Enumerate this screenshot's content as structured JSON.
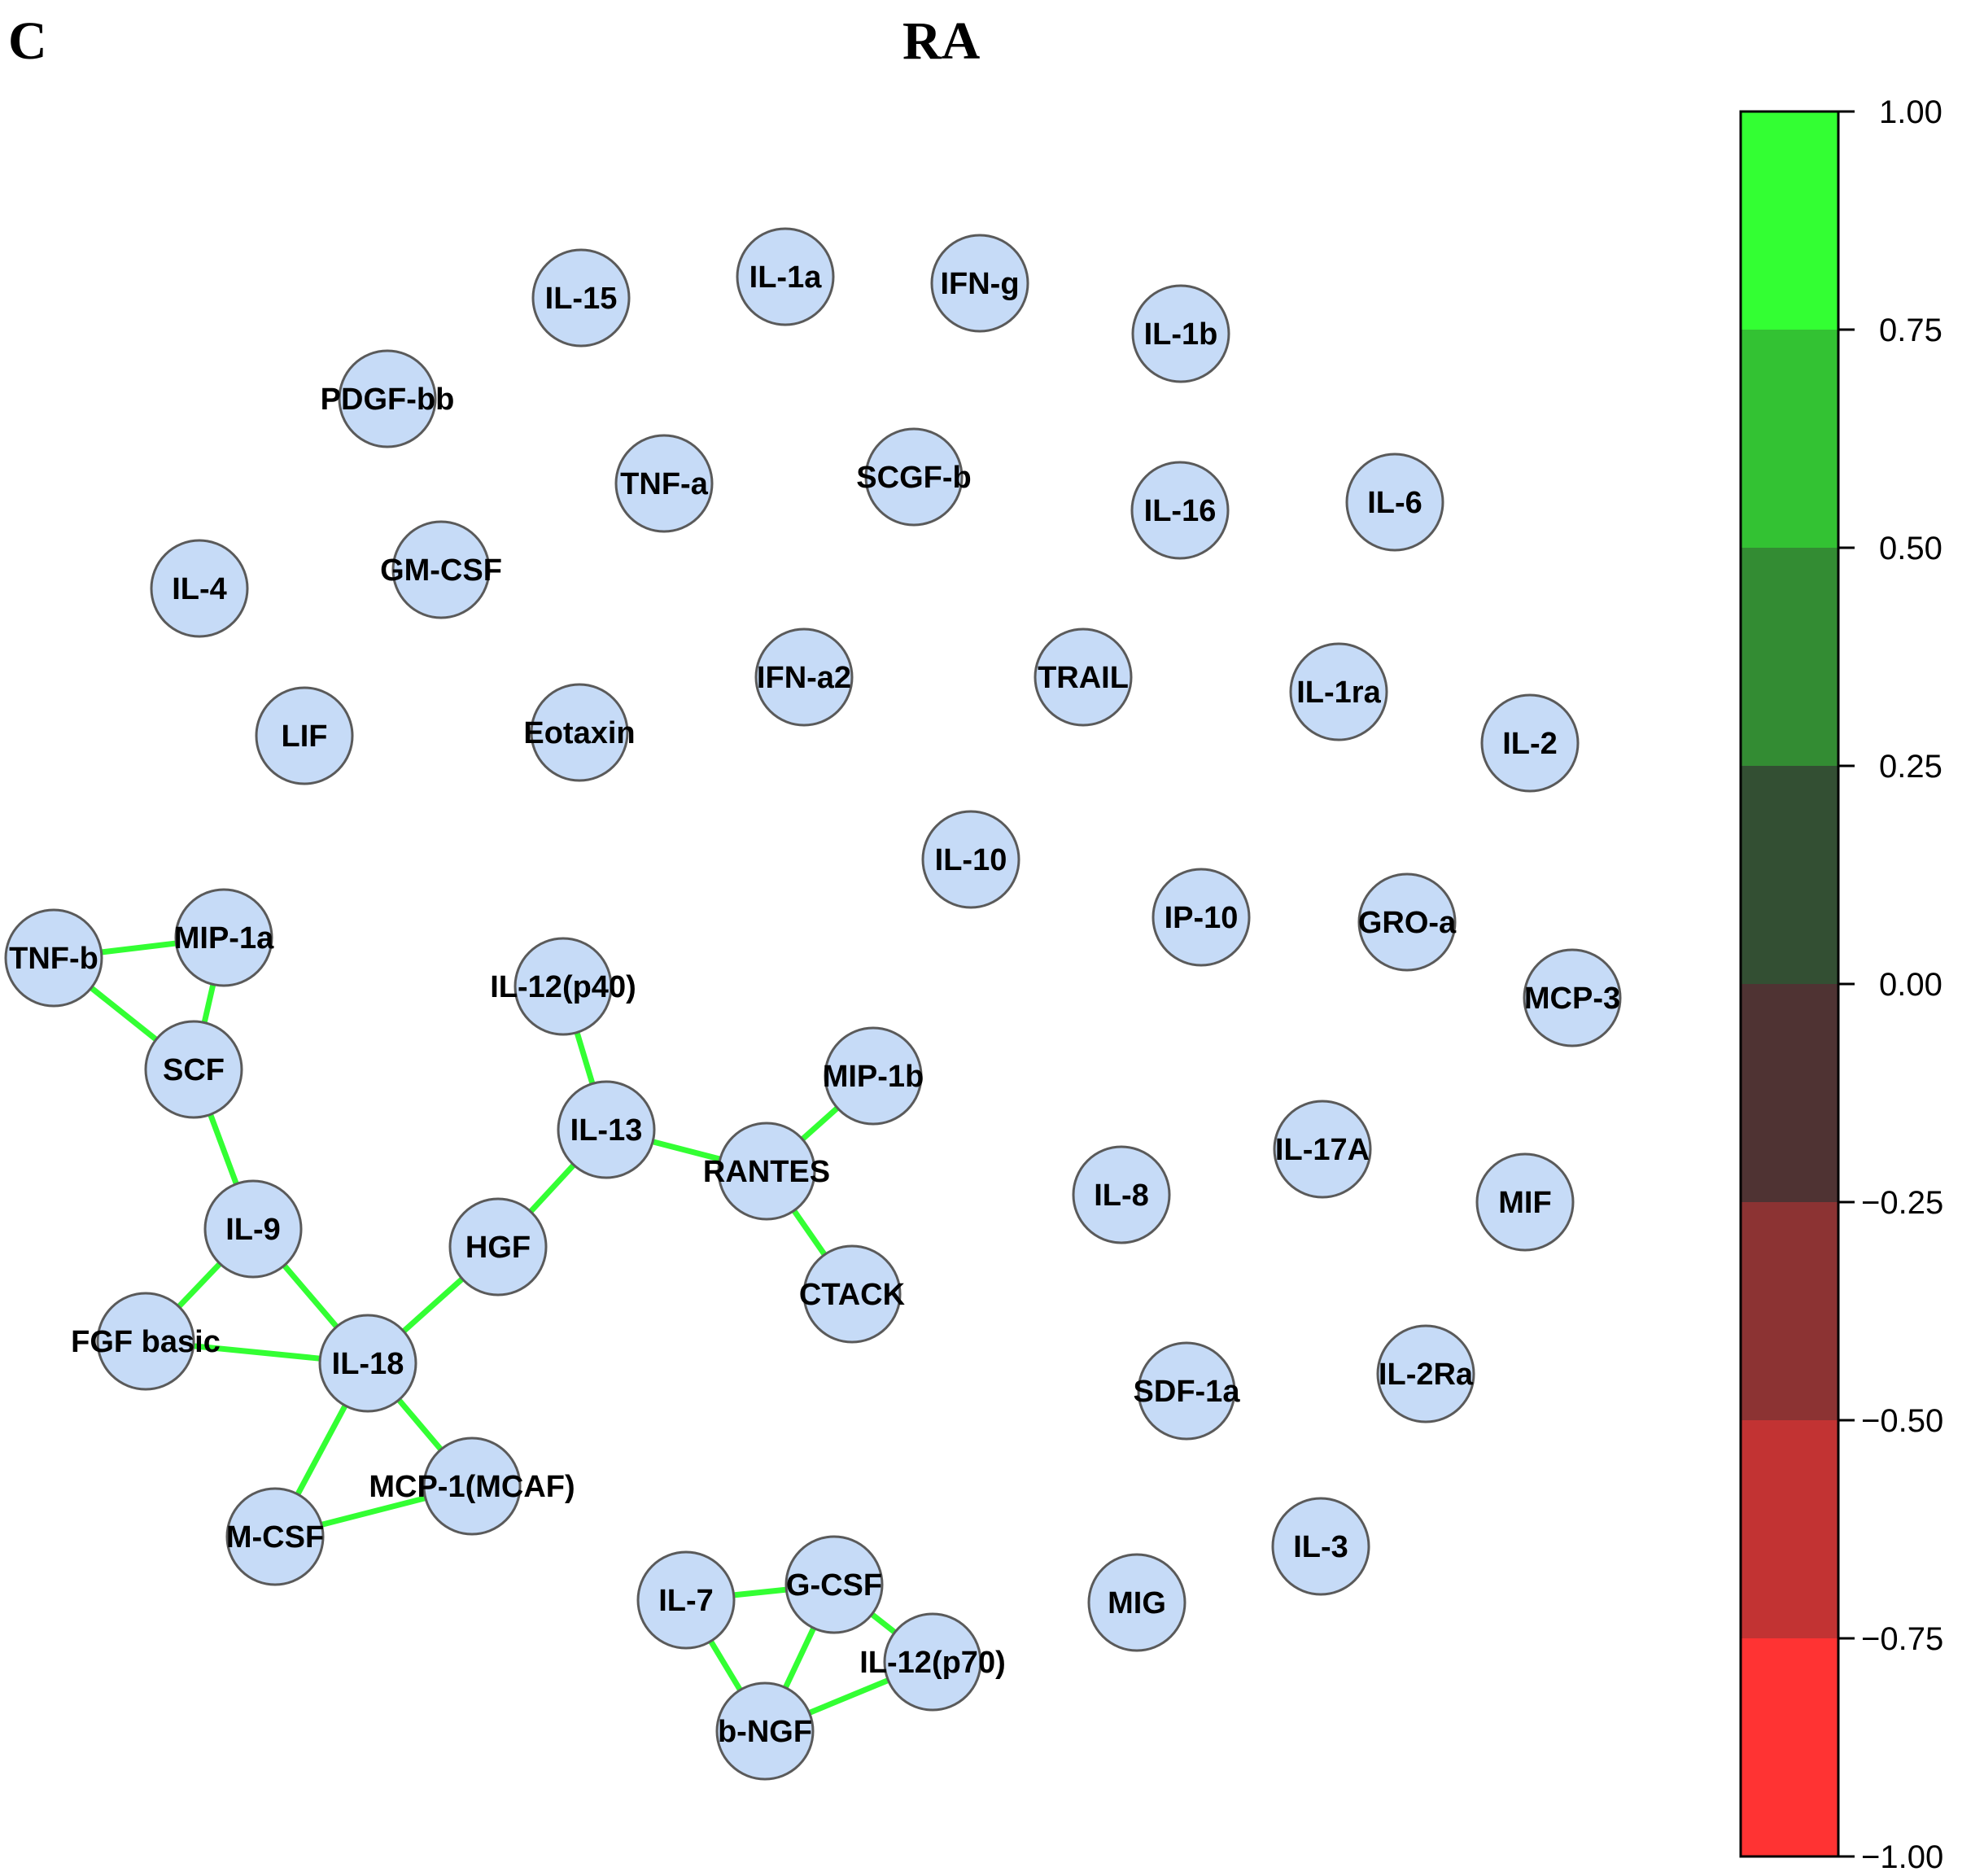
{
  "panel_letter": "C",
  "title": "RA",
  "node_fill": "#c6dbf7",
  "node_stroke": "#5a5a5a",
  "edge_color": "#33ff33",
  "nodes": [
    {
      "id": "IL-15",
      "label": "IL-15"
    },
    {
      "id": "IL-1a",
      "label": "IL-1a"
    },
    {
      "id": "IFN-g",
      "label": "IFN-g"
    },
    {
      "id": "IL-1b",
      "label": "IL-1b"
    },
    {
      "id": "PDGF-bb",
      "label": "PDGF-bb"
    },
    {
      "id": "TNF-a",
      "label": "TNF-a"
    },
    {
      "id": "SCGF-b",
      "label": "SCGF-b"
    },
    {
      "id": "IL-16",
      "label": "IL-16"
    },
    {
      "id": "IL-6",
      "label": "IL-6"
    },
    {
      "id": "IL-4",
      "label": "IL-4"
    },
    {
      "id": "GM-CSF",
      "label": "GM-CSF"
    },
    {
      "id": "IFN-a2",
      "label": "IFN-a2"
    },
    {
      "id": "TRAIL",
      "label": "TRAIL"
    },
    {
      "id": "IL-1ra",
      "label": "IL-1ra"
    },
    {
      "id": "LIF",
      "label": "LIF"
    },
    {
      "id": "Eotaxin",
      "label": "Eotaxin"
    },
    {
      "id": "IL-2",
      "label": "IL-2"
    },
    {
      "id": "IL-10",
      "label": "IL-10"
    },
    {
      "id": "IP-10",
      "label": "IP-10"
    },
    {
      "id": "GRO-a",
      "label": "GRO-a"
    },
    {
      "id": "TNF-b",
      "label": "TNF-b"
    },
    {
      "id": "MIP-1a",
      "label": "MIP-1a"
    },
    {
      "id": "MCP-3",
      "label": "MCP-3"
    },
    {
      "id": "IL-12(p40)",
      "label": "IL-12(p40)"
    },
    {
      "id": "SCF",
      "label": "SCF"
    },
    {
      "id": "MIP-1b",
      "label": "MIP-1b"
    },
    {
      "id": "IL-13",
      "label": "IL-13"
    },
    {
      "id": "IL-17A",
      "label": "IL-17A"
    },
    {
      "id": "RANTES",
      "label": "RANTES"
    },
    {
      "id": "IL-8",
      "label": "IL-8"
    },
    {
      "id": "MIF",
      "label": "MIF"
    },
    {
      "id": "IL-9",
      "label": "IL-9"
    },
    {
      "id": "HGF",
      "label": "HGF"
    },
    {
      "id": "CTACK",
      "label": "CTACK"
    },
    {
      "id": "FGF basic",
      "label": "FGF basic"
    },
    {
      "id": "IL-18",
      "label": "IL-18"
    },
    {
      "id": "IL-2Ra",
      "label": "IL-2Ra"
    },
    {
      "id": "SDF-1a",
      "label": "SDF-1a"
    },
    {
      "id": "MCP-1(MCAF)",
      "label": "MCP-1(MCAF)"
    },
    {
      "id": "M-CSF",
      "label": "M-CSF"
    },
    {
      "id": "IL-3",
      "label": "IL-3"
    },
    {
      "id": "G-CSF",
      "label": "G-CSF"
    },
    {
      "id": "IL-7",
      "label": "IL-7"
    },
    {
      "id": "MIG",
      "label": "MIG"
    },
    {
      "id": "IL-12(p70)",
      "label": "IL-12(p70)"
    },
    {
      "id": "b-NGF",
      "label": "b-NGF"
    }
  ],
  "edges": [
    [
      "TNF-b",
      "MIP-1a"
    ],
    [
      "TNF-b",
      "SCF"
    ],
    [
      "MIP-1a",
      "SCF"
    ],
    [
      "SCF",
      "IL-9"
    ],
    [
      "IL-9",
      "FGF basic"
    ],
    [
      "IL-9",
      "IL-18"
    ],
    [
      "FGF basic",
      "IL-18"
    ],
    [
      "IL-18",
      "HGF"
    ],
    [
      "IL-18",
      "M-CSF"
    ],
    [
      "IL-18",
      "MCP-1(MCAF)"
    ],
    [
      "M-CSF",
      "MCP-1(MCAF)"
    ],
    [
      "HGF",
      "IL-13"
    ],
    [
      "IL-12(p40)",
      "IL-13"
    ],
    [
      "IL-13",
      "RANTES"
    ],
    [
      "RANTES",
      "MIP-1b"
    ],
    [
      "RANTES",
      "CTACK"
    ],
    [
      "IL-7",
      "G-CSF"
    ],
    [
      "IL-7",
      "b-NGF"
    ],
    [
      "G-CSF",
      "b-NGF"
    ],
    [
      "G-CSF",
      "IL-12(p70)"
    ],
    [
      "IL-12(p70)",
      "b-NGF"
    ]
  ],
  "colorbar": {
    "ticks": [
      "1.00",
      "0.75",
      "0.50",
      "0.25",
      "0.00",
      "−0.25",
      "−0.50",
      "−0.75",
      "−1.00"
    ],
    "bands_top_to_bottom": [
      "#33ff33",
      "#33c233",
      "#338c33",
      "#334f33",
      "#4f3333",
      "#8c3333",
      "#c23333",
      "#ff3333"
    ]
  }
}
